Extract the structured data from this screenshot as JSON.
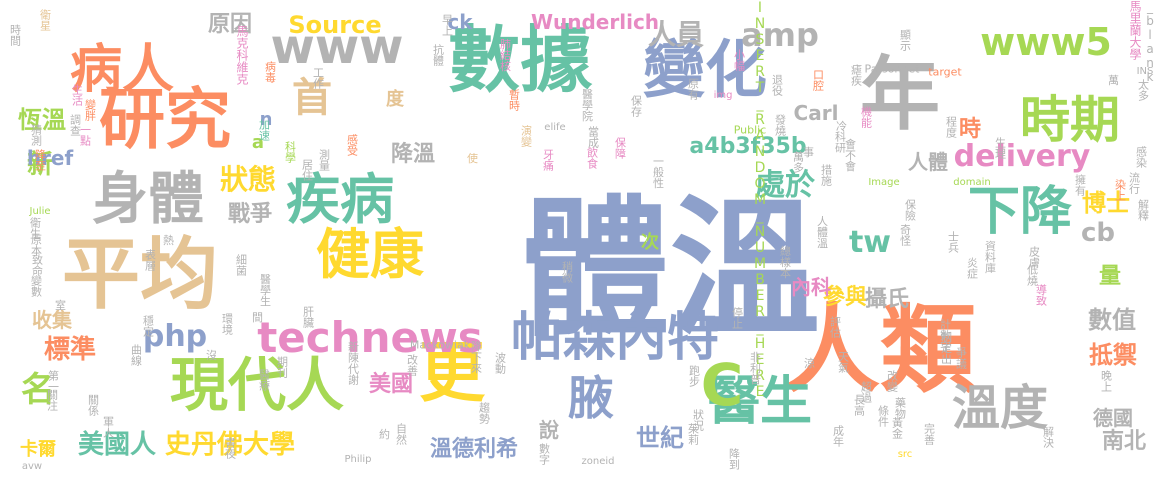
{
  "palette": {
    "blue": "#8DA0CB",
    "orange": "#FC8D62",
    "green": "#66C2A5",
    "lime": "#A6D854",
    "yellow": "#FFD92F",
    "tan": "#E5C494",
    "gray": "#B3B3B3",
    "pink": "#E78AC3"
  },
  "words": [
    {
      "text": "體溫",
      "color": "blue"
    },
    {
      "text": "人類",
      "color": "orange"
    },
    {
      "text": "數據",
      "color": "green"
    },
    {
      "text": "平均",
      "color": "tan"
    },
    {
      "text": "研究",
      "color": "orange"
    },
    {
      "text": "年",
      "color": "gray"
    },
    {
      "text": "身體",
      "color": "gray"
    },
    {
      "text": "變化",
      "color": "blue"
    },
    {
      "text": "疾病",
      "color": "green"
    },
    {
      "text": "健康",
      "color": "yellow"
    },
    {
      "text": "現代人",
      "color": "lime"
    },
    {
      "text": "更",
      "color": "yellow"
    },
    {
      "text": "帕森內特",
      "color": "blue"
    },
    {
      "text": "醫生",
      "color": "green"
    },
    {
      "text": "溫度",
      "color": "gray"
    },
    {
      "text": "時期",
      "color": "lime"
    },
    {
      "text": "下降",
      "color": "green"
    },
    {
      "text": "病人",
      "color": "orange"
    },
    {
      "text": "www",
      "color": "gray"
    },
    {
      "text": "www5",
      "color": "lime"
    },
    {
      "text": "technews",
      "color": "pink"
    },
    {
      "text": "amp",
      "color": "gray"
    },
    {
      "text": "首",
      "color": "tan"
    },
    {
      "text": "腋",
      "color": "blue"
    },
    {
      "text": "C",
      "color": "lime"
    },
    {
      "text": "delivery",
      "color": "pink"
    },
    {
      "text": "狀態",
      "color": "yellow"
    },
    {
      "text": "名",
      "color": "lime"
    },
    {
      "text": "史丹佛大學",
      "color": "yellow"
    },
    {
      "text": "美國人",
      "color": "green"
    },
    {
      "text": "處於",
      "color": "green"
    },
    {
      "text": "博士",
      "color": "yellow"
    },
    {
      "text": "tw",
      "color": "green"
    },
    {
      "text": "cb",
      "color": "gray"
    },
    {
      "text": "php",
      "color": "blue"
    },
    {
      "text": "標準",
      "color": "orange"
    },
    {
      "text": "Source",
      "color": "yellow"
    },
    {
      "text": "原因",
      "color": "gray"
    },
    {
      "text": "人員",
      "color": "gray"
    },
    {
      "text": "恆溫",
      "color": "lime"
    },
    {
      "text": "新",
      "color": "lime"
    },
    {
      "text": "戰爭",
      "color": "gray"
    },
    {
      "text": "參與",
      "color": "yellow"
    },
    {
      "text": "美國",
      "color": "pink"
    },
    {
      "text": "世紀",
      "color": "blue"
    },
    {
      "text": "南北",
      "color": "gray"
    },
    {
      "text": "抵禦",
      "color": "orange"
    },
    {
      "text": "數值",
      "color": "gray"
    },
    {
      "text": "攝氏",
      "color": "gray"
    },
    {
      "text": "a4b3f35b",
      "color": "green"
    },
    {
      "text": "降溫",
      "color": "gray"
    },
    {
      "text": "時",
      "color": "orange"
    },
    {
      "text": "量",
      "color": "lime"
    },
    {
      "text": "人體",
      "color": "gray"
    },
    {
      "text": "Wunderlich",
      "color": "pink"
    },
    {
      "text": "Carl",
      "color": "gray"
    },
    {
      "text": "ck",
      "color": "blue"
    },
    {
      "text": "href",
      "color": "blue"
    },
    {
      "text": "收集",
      "color": "tan"
    },
    {
      "text": "卡爾",
      "color": "yellow"
    },
    {
      "text": "溫德利希",
      "color": "blue"
    },
    {
      "text": "說",
      "color": "gray"
    },
    {
      "text": "德國",
      "color": "gray"
    },
    {
      "text": "內科",
      "color": "pink"
    },
    {
      "text": "度",
      "color": "tan"
    },
    {
      "text": "a",
      "color": "lime"
    },
    {
      "text": "n",
      "color": "blue"
    },
    {
      "text": "次",
      "color": "lime"
    },
    {
      "text": "INSERT_RANDOM_NUMBER_HERE",
      "color": "lime"
    },
    {
      "text": "馬里蘭大學",
      "color": "pink"
    },
    {
      "text": "_blank",
      "color": "gray"
    },
    {
      "text": "馬克科維克",
      "color": "pink"
    },
    {
      "text": "Parsonnet",
      "color": "gray"
    },
    {
      "text": "Mackowiak",
      "color": "gray"
    },
    {
      "text": "Philip",
      "color": "gray"
    },
    {
      "text": "elife",
      "color": "gray"
    },
    {
      "text": "Julie",
      "color": "lime"
    },
    {
      "text": "avw",
      "color": "gray"
    },
    {
      "text": "zoneid",
      "color": "gray"
    },
    {
      "text": "Public",
      "color": "lime"
    },
    {
      "text": "Image",
      "color": "lime"
    },
    {
      "text": "domain",
      "color": "lime"
    },
    {
      "text": "target",
      "color": "orange"
    },
    {
      "text": "img",
      "color": "pink"
    },
    {
      "text": "INS",
      "color": "gray"
    },
    {
      "text": "src",
      "color": "yellow"
    },
    {
      "text": "時間",
      "color": "gray"
    },
    {
      "text": "衛星",
      "color": "tan"
    },
    {
      "text": "早上",
      "color": "gray"
    },
    {
      "text": "抗體",
      "color": "gray"
    },
    {
      "text": "肺結核",
      "color": "pink"
    },
    {
      "text": "病毒",
      "color": "orange"
    },
    {
      "text": "工作",
      "color": "gray"
    },
    {
      "text": "生活",
      "color": "pink"
    },
    {
      "text": "變胖",
      "color": "orange"
    },
    {
      "text": "加速",
      "color": "green"
    },
    {
      "text": "居住",
      "color": "gray"
    },
    {
      "text": "暫時",
      "color": "orange"
    },
    {
      "text": "醫學院",
      "color": "gray"
    },
    {
      "text": "保存",
      "color": "gray"
    },
    {
      "text": "原有",
      "color": "gray"
    },
    {
      "text": "小幅",
      "color": "pink"
    },
    {
      "text": "退役",
      "color": "gray"
    },
    {
      "text": "口腔",
      "color": "orange"
    },
    {
      "text": "瘧疾",
      "color": "gray"
    },
    {
      "text": "顯示",
      "color": "gray"
    },
    {
      "text": "萬",
      "color": "gray"
    },
    {
      "text": "太多",
      "color": "gray"
    },
    {
      "text": "猜測",
      "color": "gray"
    },
    {
      "text": "調查",
      "color": "gray"
    },
    {
      "text": "一點",
      "color": "pink"
    },
    {
      "text": "感受",
      "color": "orange"
    },
    {
      "text": "科學",
      "color": "lime"
    },
    {
      "text": "測量",
      "color": "gray"
    },
    {
      "text": "使",
      "color": "tan"
    },
    {
      "text": "演變",
      "color": "tan"
    },
    {
      "text": "當成",
      "color": "gray"
    },
    {
      "text": "保障",
      "color": "pink"
    },
    {
      "text": "牙痛",
      "color": "pink"
    },
    {
      "text": "發燒",
      "color": "gray"
    },
    {
      "text": "事",
      "color": "gray"
    },
    {
      "text": "機能",
      "color": "pink"
    },
    {
      "text": "程度",
      "color": "gray"
    },
    {
      "text": "生理",
      "color": "gray"
    },
    {
      "text": "冷",
      "color": "gray"
    },
    {
      "text": "科研",
      "color": "gray"
    },
    {
      "text": "降至",
      "color": "orange"
    },
    {
      "text": "飲食",
      "color": "pink"
    },
    {
      "text": "一般性",
      "color": "gray"
    },
    {
      "text": "萬多",
      "color": "gray"
    },
    {
      "text": "措施",
      "color": "gray"
    },
    {
      "text": "會不會",
      "color": "gray"
    },
    {
      "text": "擁有",
      "color": "gray"
    },
    {
      "text": "感染",
      "color": "gray"
    },
    {
      "text": "流行",
      "color": "gray"
    },
    {
      "text": "染上",
      "color": "orange"
    },
    {
      "text": "解釋",
      "color": "gray"
    },
    {
      "text": "保險",
      "color": "gray"
    },
    {
      "text": "奇怪",
      "color": "gray"
    },
    {
      "text": "衛生",
      "color": "gray"
    },
    {
      "text": "原本",
      "color": "gray"
    },
    {
      "text": "致命",
      "color": "gray"
    },
    {
      "text": "變數",
      "color": "gray"
    },
    {
      "text": "熱",
      "color": "gray"
    },
    {
      "text": "表層",
      "color": "gray"
    },
    {
      "text": "細菌",
      "color": "gray"
    },
    {
      "text": "醫學生",
      "color": "gray"
    },
    {
      "text": "人體溫",
      "color": "gray"
    },
    {
      "text": "總樣本",
      "color": "gray"
    },
    {
      "text": "士兵",
      "color": "gray"
    },
    {
      "text": "皮膚",
      "color": "gray"
    },
    {
      "text": "資料庫",
      "color": "gray"
    },
    {
      "text": "低燒",
      "color": "gray"
    },
    {
      "text": "炎症",
      "color": "gray"
    },
    {
      "text": "導致",
      "color": "pink"
    },
    {
      "text": "稍微",
      "color": "gray"
    },
    {
      "text": "間",
      "color": "gray"
    },
    {
      "text": "肝臟",
      "color": "gray"
    },
    {
      "text": "環境",
      "color": "gray"
    },
    {
      "text": "穩定",
      "color": "gray"
    },
    {
      "text": "室",
      "color": "gray"
    },
    {
      "text": "曲線",
      "color": "gray"
    },
    {
      "text": "沒",
      "color": "gray"
    },
    {
      "text": "期刊",
      "color": "gray"
    },
    {
      "text": "新陳代謝",
      "color": "gray"
    },
    {
      "text": "改善",
      "color": "gray"
    },
    {
      "text": "降下來",
      "color": "gray"
    },
    {
      "text": "波動",
      "color": "gray"
    },
    {
      "text": "停止",
      "color": "gray"
    },
    {
      "text": "評估",
      "color": "gray"
    },
    {
      "text": "計數字",
      "color": "gray"
    },
    {
      "text": "爭議",
      "color": "gray"
    },
    {
      "text": "涼",
      "color": "gray"
    },
    {
      "text": "制定出",
      "color": "gray"
    },
    {
      "text": "天氣",
      "color": "gray"
    },
    {
      "text": "第一",
      "color": "gray"
    },
    {
      "text": "關注",
      "color": "gray"
    },
    {
      "text": "關係",
      "color": "gray"
    },
    {
      "text": "醫療",
      "color": "gray"
    },
    {
      "text": "跑步",
      "color": "gray"
    },
    {
      "text": "非利普",
      "color": "gray"
    },
    {
      "text": "超過",
      "color": "gray"
    },
    {
      "text": "改變",
      "color": "gray"
    },
    {
      "text": "晚上",
      "color": "gray"
    },
    {
      "text": "軍人",
      "color": "gray"
    },
    {
      "text": "長高",
      "color": "gray"
    },
    {
      "text": "藥物",
      "color": "gray"
    },
    {
      "text": "黃金",
      "color": "gray"
    },
    {
      "text": "完善",
      "color": "gray"
    },
    {
      "text": "約",
      "color": "gray"
    },
    {
      "text": "自然",
      "color": "gray"
    },
    {
      "text": "趨勢",
      "color": "gray"
    },
    {
      "text": "狀況",
      "color": "gray"
    },
    {
      "text": "成年",
      "color": "gray"
    },
    {
      "text": "條件",
      "color": "gray"
    },
    {
      "text": "解決",
      "color": "gray"
    },
    {
      "text": "書夜",
      "color": "gray"
    },
    {
      "text": "數字",
      "color": "gray"
    },
    {
      "text": "茱莉",
      "color": "gray"
    },
    {
      "text": "降到",
      "color": "gray"
    }
  ]
}
